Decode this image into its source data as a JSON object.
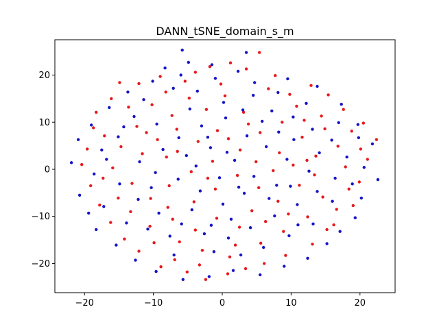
{
  "chart_data": {
    "type": "scatter",
    "title": "DANN_tSNE_domain_s_m",
    "xlabel": "",
    "ylabel": "",
    "xlim": [
      -24.3,
      25.1
    ],
    "ylim": [
      -26.2,
      27.5
    ],
    "xticks": [
      -20,
      -10,
      0,
      10,
      20
    ],
    "yticks": [
      -20,
      -10,
      0,
      10,
      20
    ],
    "grid": false,
    "legend": "none",
    "series": [
      {
        "color": "#e8191b",
        "points": [
          [
            5.4,
            24.8
          ],
          [
            1.2,
            22.6
          ],
          [
            -1.8,
            21.8
          ],
          [
            -3.9,
            20.6
          ],
          [
            3.5,
            21.3
          ],
          [
            7.7,
            19.9
          ],
          [
            12.9,
            17.8
          ],
          [
            -12.1,
            18.2
          ],
          [
            -9.0,
            19.7
          ],
          [
            -14.9,
            18.4
          ],
          [
            -16.1,
            15.0
          ],
          [
            -18.3,
            12.1
          ],
          [
            -17.1,
            7.1
          ],
          [
            -19.6,
            4.3
          ],
          [
            -20.4,
            1.0
          ],
          [
            -19.1,
            -3.5
          ],
          [
            -17.8,
            -7.6
          ],
          [
            -16.2,
            -11.3
          ],
          [
            -14.2,
            -14.8
          ],
          [
            -12.1,
            -17.4
          ],
          [
            -8.9,
            -20.7
          ],
          [
            -6.9,
            -19.2
          ],
          [
            -5.1,
            -21.8
          ],
          [
            -2.4,
            -23.4
          ],
          [
            0.8,
            -22.2
          ],
          [
            3.4,
            -21.1
          ],
          [
            6.1,
            -20.0
          ],
          [
            9.2,
            -18.3
          ],
          [
            13.1,
            -15.9
          ],
          [
            16.2,
            -11.8
          ],
          [
            19.0,
            -7.7
          ],
          [
            19.9,
            -2.7
          ],
          [
            21.1,
            2.1
          ],
          [
            22.4,
            6.3
          ],
          [
            20.5,
            9.8
          ],
          [
            17.6,
            12.7
          ],
          [
            15.4,
            15.8
          ],
          [
            10.8,
            13.4
          ],
          [
            8.7,
            10.0
          ],
          [
            11.6,
            6.8
          ],
          [
            14.9,
            8.6
          ],
          [
            16.8,
            4.9
          ],
          [
            12.3,
            1.9
          ],
          [
            8.3,
            3.5
          ],
          [
            5.5,
            7.8
          ],
          [
            3.1,
            12.1
          ],
          [
            0.4,
            15.6
          ],
          [
            -2.3,
            12.7
          ],
          [
            -4.8,
            15.1
          ],
          [
            -7.3,
            11.4
          ],
          [
            -10.2,
            13.7
          ],
          [
            -12.4,
            9.1
          ],
          [
            -9.4,
            6.3
          ],
          [
            -6.6,
            8.5
          ],
          [
            -3.5,
            5.9
          ],
          [
            -0.7,
            8.2
          ],
          [
            2.6,
            4.1
          ],
          [
            -1.4,
            1.7
          ],
          [
            -4.5,
            -0.5
          ],
          [
            -8.1,
            2.6
          ],
          [
            -11.6,
            3.3
          ],
          [
            -14.7,
            4.8
          ],
          [
            -15.9,
            0.3
          ],
          [
            -13.1,
            -3.0
          ],
          [
            -10.4,
            -6.2
          ],
          [
            -7.7,
            -3.5
          ],
          [
            -4.1,
            -6.9
          ],
          [
            -1.0,
            -4.2
          ],
          [
            2.2,
            -1.3
          ],
          [
            5.3,
            -3.9
          ],
          [
            8.1,
            -6.8
          ],
          [
            11.2,
            -3.4
          ],
          [
            14.6,
            -5.9
          ],
          [
            12.4,
            -10.1
          ],
          [
            8.9,
            -13.2
          ],
          [
            5.6,
            -15.7
          ],
          [
            2.5,
            -12.3
          ],
          [
            -0.8,
            -10.4
          ],
          [
            -3.9,
            -12.9
          ],
          [
            -7.2,
            -10.6
          ],
          [
            -10.5,
            -12.1
          ],
          [
            -13.3,
            -9.0
          ],
          [
            -6.2,
            -15.4
          ],
          [
            -2.9,
            -17.2
          ],
          [
            1.1,
            -18.6
          ],
          [
            4.3,
            -8.8
          ],
          [
            7.4,
            -0.3
          ],
          [
            10.3,
            0.9
          ],
          [
            13.6,
            2.8
          ],
          [
            17.9,
            0.5
          ],
          [
            18.4,
            -4.2
          ],
          [
            16.6,
            -8.5
          ],
          [
            -17.3,
            -1.9
          ],
          [
            -18.7,
            8.8
          ],
          [
            -13.6,
            13.2
          ],
          [
            -8.2,
            16.4
          ],
          [
            -5.4,
            18.7
          ],
          [
            -0.2,
            18.1
          ],
          [
            6.7,
            17.1
          ],
          [
            9.8,
            15.9
          ],
          [
            14.4,
            11.3
          ],
          [
            18.8,
            8.1
          ],
          [
            20.1,
            4.3
          ],
          [
            6.3,
            -11.1
          ],
          [
            -9.9,
            -15.6
          ],
          [
            -15.1,
            -6.1
          ],
          [
            3.8,
            9.6
          ],
          [
            -2.1,
            -1.9
          ],
          [
            0.9,
            6.5
          ],
          [
            -6.5,
            3.8
          ],
          [
            9.6,
            -9.5
          ],
          [
            -3.3,
            -20.3
          ],
          [
            1.9,
            -16.1
          ],
          [
            15.2,
            -12.8
          ],
          [
            -11.0,
            7.8
          ],
          [
            11.9,
            10.4
          ],
          [
            4.9,
            1.6
          ],
          [
            -7.9,
            -8.1
          ],
          [
            13.4,
            -1.2
          ]
        ]
      },
      {
        "color": "#1414c8",
        "points": [
          [
            -5.8,
            25.3
          ],
          [
            3.5,
            24.8
          ],
          [
            -1.5,
            22.2
          ],
          [
            -4.9,
            22.7
          ],
          [
            -8.3,
            21.5
          ],
          [
            2.3,
            20.8
          ],
          [
            9.5,
            19.2
          ],
          [
            13.8,
            17.6
          ],
          [
            17.3,
            13.8
          ],
          [
            19.7,
            9.5
          ],
          [
            21.8,
            5.4
          ],
          [
            22.6,
            -2.2
          ],
          [
            20.2,
            -6.1
          ],
          [
            19.3,
            -10.3
          ],
          [
            17.1,
            -13.2
          ],
          [
            15.2,
            -15.8
          ],
          [
            12.4,
            -18.9
          ],
          [
            9.0,
            -20.6
          ],
          [
            5.5,
            -22.4
          ],
          [
            1.6,
            -21.5
          ],
          [
            -1.9,
            -22.8
          ],
          [
            -5.7,
            -23.4
          ],
          [
            -9.6,
            -21.7
          ],
          [
            -12.6,
            -19.3
          ],
          [
            -15.4,
            -16.1
          ],
          [
            -18.3,
            -12.8
          ],
          [
            -19.4,
            -9.3
          ],
          [
            -20.7,
            -5.5
          ],
          [
            -21.9,
            1.4
          ],
          [
            -20.9,
            6.3
          ],
          [
            -19.0,
            9.4
          ],
          [
            -16.4,
            13.1
          ],
          [
            -13.7,
            16.4
          ],
          [
            -10.1,
            18.7
          ],
          [
            -7.1,
            17.2
          ],
          [
            -3.6,
            16.6
          ],
          [
            0.2,
            14.2
          ],
          [
            4.5,
            15.7
          ],
          [
            7.2,
            12.4
          ],
          [
            10.3,
            11.1
          ],
          [
            13.1,
            8.5
          ],
          [
            15.9,
            6.2
          ],
          [
            18.1,
            2.6
          ],
          [
            16.4,
            -1.9
          ],
          [
            13.8,
            -4.7
          ],
          [
            10.9,
            -7.5
          ],
          [
            7.6,
            -9.9
          ],
          [
            4.1,
            -12.4
          ],
          [
            0.9,
            -14.6
          ],
          [
            -2.6,
            -13.7
          ],
          [
            -5.9,
            -11.6
          ],
          [
            -9.2,
            -9.3
          ],
          [
            -12.2,
            -6.4
          ],
          [
            -14.9,
            -3.1
          ],
          [
            -16.8,
            2.1
          ],
          [
            -15.1,
            6.9
          ],
          [
            -12.8,
            11.2
          ],
          [
            -9.5,
            9.6
          ],
          [
            -6.3,
            6.7
          ],
          [
            -3.0,
            9.2
          ],
          [
            0.5,
            10.9
          ],
          [
            3.6,
            7.1
          ],
          [
            6.4,
            4.8
          ],
          [
            9.4,
            2.1
          ],
          [
            12.6,
            -0.4
          ],
          [
            9.9,
            -3.6
          ],
          [
            6.8,
            -6.2
          ],
          [
            3.2,
            -5.1
          ],
          [
            0.1,
            -7.4
          ],
          [
            -3.2,
            -4.6
          ],
          [
            -6.4,
            -2.1
          ],
          [
            -9.7,
            -0.7
          ],
          [
            -12.0,
            1.6
          ],
          [
            -8.6,
            4.2
          ],
          [
            -5.2,
            2.9
          ],
          [
            -1.7,
            4.6
          ],
          [
            1.8,
            1.9
          ],
          [
            4.6,
            -1.5
          ],
          [
            7.9,
            -3.4
          ],
          [
            -0.4,
            -1.8
          ],
          [
            -3.8,
            0.7
          ],
          [
            1.3,
            -10.6
          ],
          [
            -4.4,
            -8.6
          ],
          [
            -7.6,
            -14.2
          ],
          [
            -10.8,
            -12.7
          ],
          [
            -13.9,
            -11.4
          ],
          [
            -1.2,
            -17.5
          ],
          [
            2.7,
            -18.2
          ],
          [
            6.0,
            -16.6
          ],
          [
            9.7,
            -14.1
          ],
          [
            13.2,
            -11.6
          ],
          [
            16.0,
            -6.8
          ],
          [
            18.9,
            -3.1
          ],
          [
            20.6,
            0.4
          ],
          [
            19.8,
            6.7
          ],
          [
            16.9,
            9.9
          ],
          [
            12.2,
            14.0
          ],
          [
            8.1,
            16.3
          ],
          [
            4.7,
            18.4
          ],
          [
            -1.0,
            19.3
          ],
          [
            -6.0,
            20.0
          ],
          [
            -11.4,
            14.8
          ],
          [
            -17.5,
            4.1
          ],
          [
            -18.6,
            -1.0
          ],
          [
            -17.2,
            -7.9
          ],
          [
            -2.1,
            6.8
          ],
          [
            2.4,
            -3.8
          ],
          [
            5.8,
            10.2
          ],
          [
            -7.0,
            -18.2
          ],
          [
            10.4,
            6.3
          ],
          [
            -10.3,
            -3.9
          ],
          [
            14.1,
            3.5
          ],
          [
            -4.7,
            12.8
          ],
          [
            3.0,
            12.6
          ],
          [
            11.0,
            -11.8
          ],
          [
            -14.3,
            9.0
          ],
          [
            8.2,
            7.9
          ],
          [
            -1.6,
            -11.9
          ],
          [
            0.7,
            3.6
          ]
        ]
      }
    ]
  }
}
